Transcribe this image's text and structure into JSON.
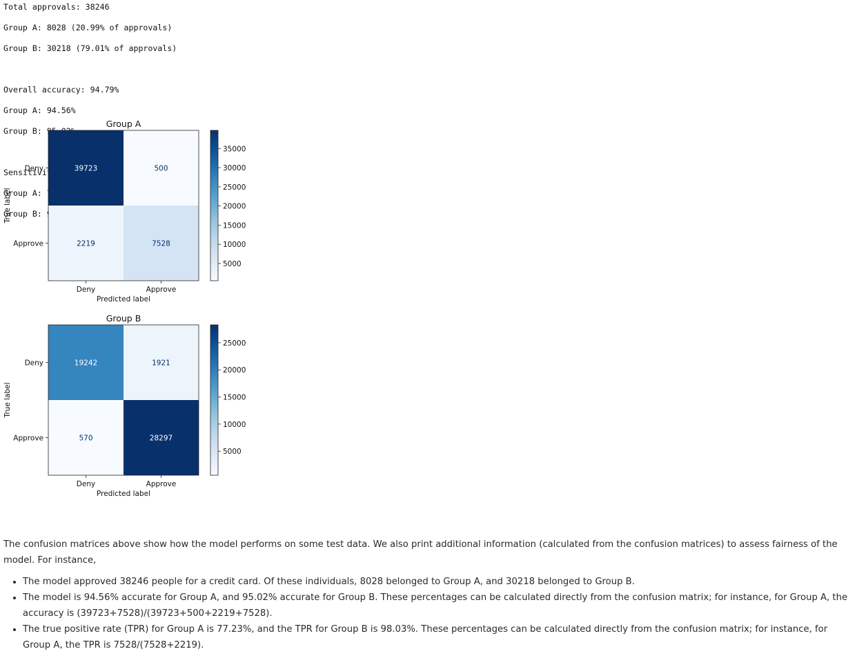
{
  "output": {
    "lines": [
      "Total approvals: 38246",
      "Group A: 8028 (20.99% of approvals)",
      "Group B: 30218 (79.01% of approvals)",
      "",
      "Overall accuracy: 94.79%",
      "Group A: 94.56%",
      "Group B: 95.02%",
      "",
      "Sensitivity / True positive rate:",
      "Group A: 77.23%",
      "Group B: 98.03%"
    ]
  },
  "chart_data": [
    {
      "type": "heatmap",
      "title": "Group A",
      "xlabel": "Predicted label",
      "ylabel": "True label",
      "x_categories": [
        "Deny",
        "Approve"
      ],
      "y_categories": [
        "Deny",
        "Approve"
      ],
      "matrix": [
        [
          39723,
          500
        ],
        [
          2219,
          7528
        ]
      ],
      "colormap": "Blues",
      "colorbar_ticks": [
        5000,
        10000,
        15000,
        20000,
        25000,
        30000,
        35000
      ],
      "colorbar_range": [
        500,
        39723
      ]
    },
    {
      "type": "heatmap",
      "title": "Group B",
      "xlabel": "Predicted label",
      "ylabel": "True label",
      "x_categories": [
        "Deny",
        "Approve"
      ],
      "y_categories": [
        "Deny",
        "Approve"
      ],
      "matrix": [
        [
          19242,
          1921
        ],
        [
          570,
          28297
        ]
      ],
      "colormap": "Blues",
      "colorbar_ticks": [
        5000,
        10000,
        15000,
        20000,
        25000
      ],
      "colorbar_range": [
        570,
        28297
      ]
    }
  ],
  "markdown": {
    "paragraph": "The confusion matrices above show how the model performs on some test data. We also print additional information (calculated from the confusion matrices) to assess fairness of the model. For instance,",
    "bullets": [
      "The model approved 38246 people for a credit card. Of these individuals, 8028 belonged to Group A, and 30218 belonged to Group B.",
      "The model is 94.56% accurate for Group A, and 95.02% accurate for Group B. These percentages can be calculated directly from the confusion matrix; for instance, for Group A, the accuracy is (39723+7528)/(39723+500+2219+7528).",
      "The true positive rate (TPR) for Group A is 77.23%, and the TPR for Group B is 98.03%. These percentages can be calculated directly from the confusion matrix; for instance, for Group A, the TPR is 7528/(7528+2219)."
    ]
  }
}
